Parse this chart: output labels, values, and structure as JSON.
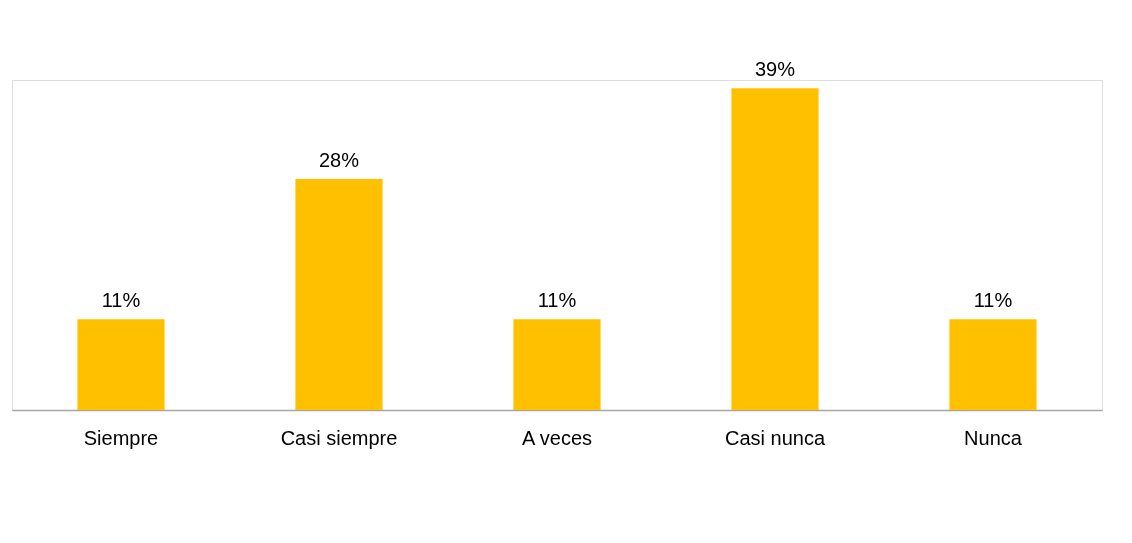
{
  "chart_data": {
    "type": "bar",
    "categories": [
      "Siempre",
      "Casi siempre",
      "A veces",
      "Casi nunca",
      "Nunca"
    ],
    "values": [
      11,
      28,
      11,
      39,
      11
    ],
    "value_labels": [
      "11%",
      "28%",
      "11%",
      "39%",
      "11%"
    ],
    "color": "#ffc000",
    "grid": false
  }
}
